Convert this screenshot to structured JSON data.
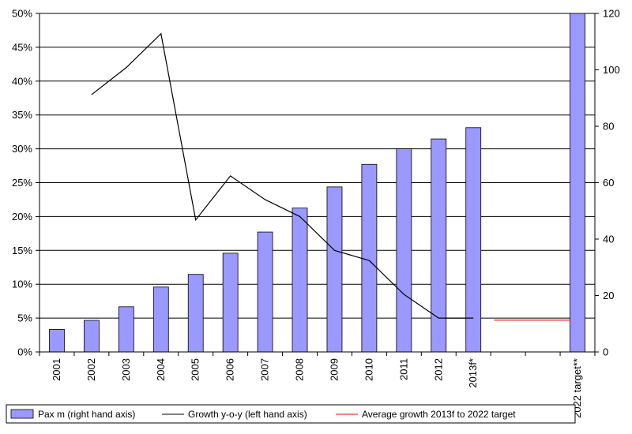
{
  "chart_data": {
    "type": "bar",
    "categories": [
      "2001",
      "2002",
      "2003",
      "2004",
      "2005",
      "2006",
      "2007",
      "2008",
      "2009",
      "2010",
      "2011",
      "2012",
      "2013f",
      "",
      "",
      "2022 target**"
    ],
    "category_labels": [
      "2001",
      "2002",
      "2003",
      "2004",
      "2005",
      "2006",
      "2007",
      "2008",
      "2009",
      "2010",
      "2011",
      "2012",
      "2013f*",
      "",
      "",
      "2022 target**"
    ],
    "series": [
      {
        "name": "Pax m (right hand axis)",
        "type": "bar",
        "axis": "right",
        "color": "#9999ff",
        "values": [
          8,
          11.2,
          16,
          23,
          27.5,
          35,
          42.5,
          51,
          58.5,
          66.5,
          72,
          75.5,
          79.5,
          null,
          null,
          120
        ]
      },
      {
        "name": "Growth y-o-y (left hand axis)",
        "type": "line",
        "axis": "left",
        "color": "#000000",
        "values": [
          null,
          38,
          42,
          47,
          19.5,
          26,
          22.5,
          20,
          15,
          13.5,
          8.5,
          5,
          5,
          null,
          null,
          null
        ]
      },
      {
        "name": "Average growth 2013f to 2022 target",
        "type": "line",
        "axis": "left",
        "color": "#ff0000",
        "values": [
          null,
          null,
          null,
          null,
          null,
          null,
          null,
          null,
          null,
          null,
          null,
          null,
          null,
          4.7,
          4.7,
          4.7
        ]
      }
    ],
    "left_axis": {
      "min": 0,
      "max": 50,
      "step": 5,
      "tick_labels": [
        "0%",
        "5%",
        "10%",
        "15%",
        "20%",
        "25%",
        "30%",
        "35%",
        "40%",
        "45%",
        "50%"
      ]
    },
    "right_axis": {
      "min": 0,
      "max": 120,
      "step": 20,
      "tick_labels": [
        "0",
        "20",
        "40",
        "60",
        "80",
        "100",
        "120"
      ]
    },
    "grid": true,
    "legend_position": "bottom-left"
  }
}
